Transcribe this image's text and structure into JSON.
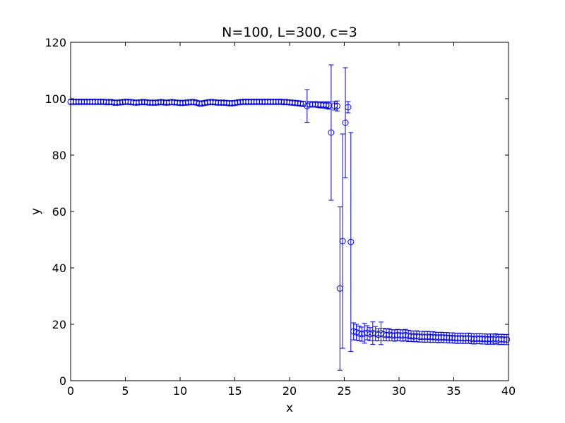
{
  "chart_data": {
    "type": "scatter",
    "title": "N=100, L=300, c=3",
    "xlabel": "x",
    "ylabel": "y",
    "xlim": [
      0,
      40
    ],
    "ylim": [
      0,
      120
    ],
    "xticks": [
      0,
      5,
      10,
      15,
      20,
      25,
      30,
      35,
      40
    ],
    "yticks": [
      0,
      20,
      40,
      60,
      80,
      100,
      120
    ],
    "grid": false,
    "marker": "open-circle",
    "color": "#0000ff",
    "series": [
      {
        "points": [
          {
            "x": 0.0,
            "y": 98.9,
            "err": 0.8
          },
          {
            "x": 0.25,
            "y": 98.9,
            "err": 0.8
          },
          {
            "x": 0.5,
            "y": 98.9,
            "err": 0.8
          },
          {
            "x": 0.75,
            "y": 98.9,
            "err": 0.8
          },
          {
            "x": 1.0,
            "y": 98.9,
            "err": 0.8
          },
          {
            "x": 1.25,
            "y": 98.9,
            "err": 0.8
          },
          {
            "x": 1.5,
            "y": 98.9,
            "err": 0.8
          },
          {
            "x": 1.75,
            "y": 98.9,
            "err": 0.8
          },
          {
            "x": 2.0,
            "y": 98.9,
            "err": 0.8
          },
          {
            "x": 2.25,
            "y": 98.9,
            "err": 0.8
          },
          {
            "x": 2.5,
            "y": 98.9,
            "err": 0.8
          },
          {
            "x": 2.75,
            "y": 98.9,
            "err": 0.8
          },
          {
            "x": 3.0,
            "y": 98.9,
            "err": 0.8
          },
          {
            "x": 3.25,
            "y": 98.8,
            "err": 0.8
          },
          {
            "x": 3.5,
            "y": 98.8,
            "err": 0.8
          },
          {
            "x": 3.75,
            "y": 98.8,
            "err": 0.8
          },
          {
            "x": 4.0,
            "y": 98.6,
            "err": 0.8
          },
          {
            "x": 4.25,
            "y": 98.6,
            "err": 0.8
          },
          {
            "x": 4.5,
            "y": 98.7,
            "err": 0.8
          },
          {
            "x": 4.75,
            "y": 98.8,
            "err": 0.8
          },
          {
            "x": 5.0,
            "y": 98.9,
            "err": 0.8
          },
          {
            "x": 5.25,
            "y": 98.9,
            "err": 0.8
          },
          {
            "x": 5.5,
            "y": 98.8,
            "err": 0.8
          },
          {
            "x": 5.75,
            "y": 98.7,
            "err": 0.8
          },
          {
            "x": 6.0,
            "y": 98.6,
            "err": 0.8
          },
          {
            "x": 6.25,
            "y": 98.7,
            "err": 0.8
          },
          {
            "x": 6.5,
            "y": 98.8,
            "err": 0.8
          },
          {
            "x": 6.75,
            "y": 98.8,
            "err": 0.8
          },
          {
            "x": 7.0,
            "y": 98.7,
            "err": 0.8
          },
          {
            "x": 7.25,
            "y": 98.6,
            "err": 0.8
          },
          {
            "x": 7.5,
            "y": 98.6,
            "err": 0.8
          },
          {
            "x": 7.75,
            "y": 98.6,
            "err": 0.8
          },
          {
            "x": 8.0,
            "y": 98.7,
            "err": 0.8
          },
          {
            "x": 8.25,
            "y": 98.8,
            "err": 0.8
          },
          {
            "x": 8.5,
            "y": 98.7,
            "err": 0.8
          },
          {
            "x": 8.75,
            "y": 98.6,
            "err": 0.8
          },
          {
            "x": 9.0,
            "y": 98.7,
            "err": 0.8
          },
          {
            "x": 9.25,
            "y": 98.8,
            "err": 0.8
          },
          {
            "x": 9.5,
            "y": 98.7,
            "err": 0.8
          },
          {
            "x": 9.75,
            "y": 98.6,
            "err": 0.8
          },
          {
            "x": 10.0,
            "y": 98.5,
            "err": 0.8
          },
          {
            "x": 10.25,
            "y": 98.5,
            "err": 0.8
          },
          {
            "x": 10.5,
            "y": 98.6,
            "err": 0.8
          },
          {
            "x": 10.75,
            "y": 98.7,
            "err": 0.8
          },
          {
            "x": 11.0,
            "y": 98.8,
            "err": 0.8
          },
          {
            "x": 11.25,
            "y": 98.8,
            "err": 0.8
          },
          {
            "x": 11.5,
            "y": 98.6,
            "err": 0.8
          },
          {
            "x": 11.75,
            "y": 98.3,
            "err": 0.8
          },
          {
            "x": 12.0,
            "y": 98.3,
            "err": 0.8
          },
          {
            "x": 12.25,
            "y": 98.5,
            "err": 0.8
          },
          {
            "x": 12.5,
            "y": 98.7,
            "err": 0.8
          },
          {
            "x": 12.75,
            "y": 98.8,
            "err": 0.8
          },
          {
            "x": 13.0,
            "y": 98.8,
            "err": 0.8
          },
          {
            "x": 13.25,
            "y": 98.7,
            "err": 0.8
          },
          {
            "x": 13.5,
            "y": 98.6,
            "err": 0.8
          },
          {
            "x": 13.75,
            "y": 98.6,
            "err": 0.8
          },
          {
            "x": 14.0,
            "y": 98.6,
            "err": 0.8
          },
          {
            "x": 14.25,
            "y": 98.5,
            "err": 0.8
          },
          {
            "x": 14.5,
            "y": 98.4,
            "err": 0.8
          },
          {
            "x": 14.75,
            "y": 98.4,
            "err": 0.8
          },
          {
            "x": 15.0,
            "y": 98.5,
            "err": 0.8
          },
          {
            "x": 15.25,
            "y": 98.7,
            "err": 0.8
          },
          {
            "x": 15.5,
            "y": 98.8,
            "err": 0.8
          },
          {
            "x": 15.75,
            "y": 98.9,
            "err": 0.8
          },
          {
            "x": 16.0,
            "y": 98.9,
            "err": 0.8
          },
          {
            "x": 16.25,
            "y": 98.9,
            "err": 0.8
          },
          {
            "x": 16.5,
            "y": 98.9,
            "err": 0.8
          },
          {
            "x": 16.75,
            "y": 98.9,
            "err": 0.8
          },
          {
            "x": 17.0,
            "y": 98.9,
            "err": 0.8
          },
          {
            "x": 17.25,
            "y": 98.9,
            "err": 0.8
          },
          {
            "x": 17.5,
            "y": 98.9,
            "err": 0.8
          },
          {
            "x": 17.75,
            "y": 98.9,
            "err": 0.8
          },
          {
            "x": 18.0,
            "y": 98.9,
            "err": 0.8
          },
          {
            "x": 18.25,
            "y": 98.9,
            "err": 0.8
          },
          {
            "x": 18.5,
            "y": 98.9,
            "err": 0.8
          },
          {
            "x": 18.75,
            "y": 98.9,
            "err": 0.8
          },
          {
            "x": 19.0,
            "y": 98.9,
            "err": 0.8
          },
          {
            "x": 19.25,
            "y": 98.9,
            "err": 0.8
          },
          {
            "x": 19.5,
            "y": 98.8,
            "err": 0.8
          },
          {
            "x": 19.75,
            "y": 98.8,
            "err": 0.8
          },
          {
            "x": 20.0,
            "y": 98.7,
            "err": 0.8
          },
          {
            "x": 20.25,
            "y": 98.6,
            "err": 0.8
          },
          {
            "x": 20.5,
            "y": 98.5,
            "err": 0.8
          },
          {
            "x": 20.75,
            "y": 98.4,
            "err": 0.8
          },
          {
            "x": 21.0,
            "y": 98.3,
            "err": 0.8
          },
          {
            "x": 21.25,
            "y": 98.2,
            "err": 0.9
          },
          {
            "x": 21.6,
            "y": 97.4,
            "err": 5.8
          },
          {
            "x": 21.85,
            "y": 98.0,
            "err": 1.0
          },
          {
            "x": 22.1,
            "y": 98.0,
            "err": 1.0
          },
          {
            "x": 22.35,
            "y": 98.0,
            "err": 1.0
          },
          {
            "x": 22.6,
            "y": 97.9,
            "err": 1.0
          },
          {
            "x": 22.85,
            "y": 97.8,
            "err": 1.1
          },
          {
            "x": 23.1,
            "y": 97.8,
            "err": 1.1
          },
          {
            "x": 23.35,
            "y": 97.7,
            "err": 1.2
          },
          {
            "x": 23.6,
            "y": 97.6,
            "err": 1.3
          },
          {
            "x": 23.8,
            "y": 88.0,
            "err": 24.0
          },
          {
            "x": 24.1,
            "y": 97.5,
            "err": 1.5
          },
          {
            "x": 24.35,
            "y": 97.4,
            "err": 1.8
          },
          {
            "x": 24.6,
            "y": 32.7,
            "err": 29.0
          },
          {
            "x": 24.85,
            "y": 49.5,
            "err": 38.0
          },
          {
            "x": 25.1,
            "y": 91.5,
            "err": 19.5
          },
          {
            "x": 25.35,
            "y": 97.0,
            "err": 2.0
          },
          {
            "x": 25.6,
            "y": 49.2,
            "err": 38.8
          },
          {
            "x": 25.85,
            "y": 17.5,
            "err": 3.0
          },
          {
            "x": 26.1,
            "y": 17.2,
            "err": 2.8
          },
          {
            "x": 26.35,
            "y": 16.8,
            "err": 2.6
          },
          {
            "x": 26.6,
            "y": 16.5,
            "err": 2.5
          },
          {
            "x": 26.85,
            "y": 16.8,
            "err": 3.5
          },
          {
            "x": 27.1,
            "y": 17.0,
            "err": 2.5
          },
          {
            "x": 27.35,
            "y": 16.5,
            "err": 2.3
          },
          {
            "x": 27.6,
            "y": 16.9,
            "err": 4.0
          },
          {
            "x": 27.85,
            "y": 16.7,
            "err": 2.5
          },
          {
            "x": 28.1,
            "y": 16.3,
            "err": 2.2
          },
          {
            "x": 28.35,
            "y": 16.8,
            "err": 4.0
          },
          {
            "x": 28.6,
            "y": 16.4,
            "err": 2.2
          },
          {
            "x": 28.85,
            "y": 16.2,
            "err": 2.1
          },
          {
            "x": 29.1,
            "y": 16.3,
            "err": 2.2
          },
          {
            "x": 29.35,
            "y": 16.1,
            "err": 2.0
          },
          {
            "x": 29.6,
            "y": 16.0,
            "err": 2.0
          },
          {
            "x": 29.85,
            "y": 16.2,
            "err": 2.0
          },
          {
            "x": 30.1,
            "y": 16.1,
            "err": 2.0
          },
          {
            "x": 30.35,
            "y": 16.0,
            "err": 2.0
          },
          {
            "x": 30.6,
            "y": 16.2,
            "err": 2.0
          },
          {
            "x": 30.85,
            "y": 15.9,
            "err": 2.0
          },
          {
            "x": 31.1,
            "y": 15.8,
            "err": 1.9
          },
          {
            "x": 31.35,
            "y": 15.7,
            "err": 1.9
          },
          {
            "x": 31.6,
            "y": 15.8,
            "err": 1.9
          },
          {
            "x": 31.85,
            "y": 15.6,
            "err": 1.9
          },
          {
            "x": 32.1,
            "y": 15.6,
            "err": 1.9
          },
          {
            "x": 32.35,
            "y": 15.5,
            "err": 1.9
          },
          {
            "x": 32.6,
            "y": 15.6,
            "err": 1.9
          },
          {
            "x": 32.85,
            "y": 15.5,
            "err": 1.9
          },
          {
            "x": 33.1,
            "y": 15.5,
            "err": 1.9
          },
          {
            "x": 33.35,
            "y": 15.4,
            "err": 1.8
          },
          {
            "x": 33.6,
            "y": 15.3,
            "err": 1.8
          },
          {
            "x": 33.85,
            "y": 15.4,
            "err": 1.8
          },
          {
            "x": 34.1,
            "y": 15.3,
            "err": 1.8
          },
          {
            "x": 34.35,
            "y": 15.3,
            "err": 1.8
          },
          {
            "x": 34.6,
            "y": 15.2,
            "err": 1.8
          },
          {
            "x": 34.85,
            "y": 15.2,
            "err": 1.8
          },
          {
            "x": 35.1,
            "y": 15.1,
            "err": 1.8
          },
          {
            "x": 35.35,
            "y": 15.0,
            "err": 1.8
          },
          {
            "x": 35.6,
            "y": 15.1,
            "err": 1.8
          },
          {
            "x": 35.85,
            "y": 15.0,
            "err": 1.8
          },
          {
            "x": 36.1,
            "y": 15.0,
            "err": 1.8
          },
          {
            "x": 36.35,
            "y": 15.1,
            "err": 1.8
          },
          {
            "x": 36.6,
            "y": 14.9,
            "err": 1.8
          },
          {
            "x": 36.85,
            "y": 14.8,
            "err": 1.8
          },
          {
            "x": 37.1,
            "y": 14.9,
            "err": 1.8
          },
          {
            "x": 37.35,
            "y": 14.9,
            "err": 1.8
          },
          {
            "x": 37.6,
            "y": 14.8,
            "err": 1.8
          },
          {
            "x": 37.85,
            "y": 14.8,
            "err": 1.8
          },
          {
            "x": 38.1,
            "y": 14.7,
            "err": 1.8
          },
          {
            "x": 38.35,
            "y": 14.8,
            "err": 1.8
          },
          {
            "x": 38.6,
            "y": 14.7,
            "err": 1.8
          },
          {
            "x": 38.85,
            "y": 14.9,
            "err": 1.8
          },
          {
            "x": 39.1,
            "y": 14.6,
            "err": 1.8
          },
          {
            "x": 39.35,
            "y": 14.7,
            "err": 1.8
          },
          {
            "x": 39.6,
            "y": 14.6,
            "err": 1.8
          },
          {
            "x": 39.85,
            "y": 14.6,
            "err": 1.8
          }
        ]
      }
    ]
  }
}
